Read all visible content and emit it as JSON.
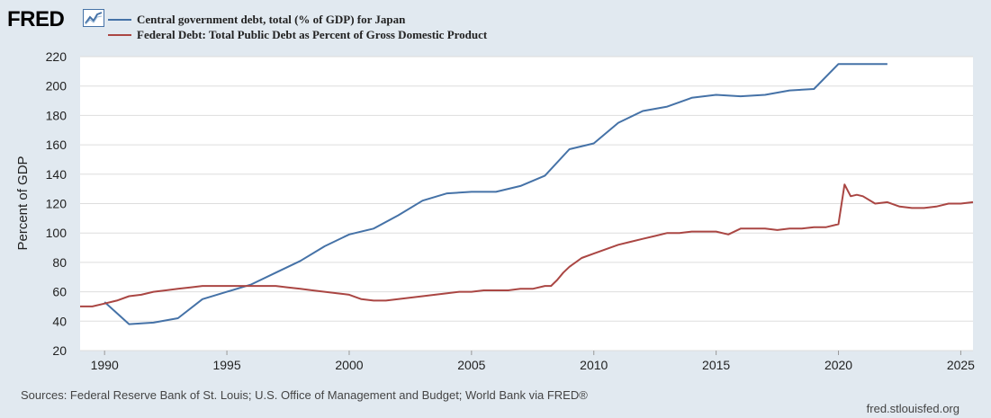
{
  "branding": {
    "logo_text": "FRED",
    "logo_icon": "chart-line-icon",
    "source_site": "fred.stlouisfed.org"
  },
  "sources_text": "Sources: Federal Reserve Bank of St. Louis; U.S. Office of Management and Budget; World Bank via FRED®",
  "colors": {
    "background": "#e1e9f0",
    "plot_bg": "#ffffff",
    "grid": "#dddddd",
    "series_japan": "#4572a7",
    "series_us": "#aa4643"
  },
  "chart_data": {
    "type": "line",
    "title": "",
    "xlabel": "",
    "ylabel": "Percent of GDP",
    "xlim": [
      1989,
      2025.5
    ],
    "ylim": [
      20,
      220
    ],
    "y_ticks": [
      20,
      40,
      60,
      80,
      100,
      120,
      140,
      160,
      180,
      200,
      220
    ],
    "x_ticks": [
      1990,
      1995,
      2000,
      2005,
      2010,
      2015,
      2020,
      2025
    ],
    "legend_position": "top-left",
    "series": [
      {
        "name": "Central government debt, total (% of GDP) for Japan",
        "color": "#4572a7",
        "x": [
          1990,
          1991,
          1992,
          1993,
          1994,
          1995,
          1996,
          1997,
          1998,
          1999,
          2000,
          2001,
          2002,
          2003,
          2004,
          2005,
          2006,
          2007,
          2008,
          2009,
          2010,
          2011,
          2012,
          2013,
          2014,
          2015,
          2016,
          2017,
          2018,
          2019,
          2020,
          2021,
          2022
        ],
        "y": [
          53,
          38,
          39,
          42,
          55,
          60,
          65,
          73,
          81,
          91,
          99,
          103,
          112,
          122,
          127,
          128,
          128,
          132,
          139,
          157,
          161,
          175,
          183,
          186,
          192,
          194,
          193,
          194,
          197,
          198,
          215,
          215,
          215
        ]
      },
      {
        "name": "Federal Debt: Total Public Debt as Percent of Gross Domestic Product",
        "color": "#aa4643",
        "x": [
          1989,
          1989.5,
          1990,
          1990.5,
          1991,
          1991.5,
          1992,
          1992.5,
          1993,
          1993.5,
          1994,
          1994.5,
          1995,
          1995.5,
          1996,
          1996.5,
          1997,
          1997.5,
          1998,
          1998.5,
          1999,
          1999.5,
          2000,
          2000.5,
          2001,
          2001.5,
          2002,
          2002.5,
          2003,
          2003.5,
          2004,
          2004.5,
          2005,
          2005.5,
          2006,
          2006.5,
          2007,
          2007.5,
          2008,
          2008.25,
          2008.5,
          2008.75,
          2009,
          2009.25,
          2009.5,
          2010,
          2010.5,
          2011,
          2011.5,
          2012,
          2012.5,
          2013,
          2013.5,
          2014,
          2014.5,
          2015,
          2015.5,
          2016,
          2016.5,
          2017,
          2017.5,
          2018,
          2018.5,
          2019,
          2019.5,
          2020,
          2020.25,
          2020.5,
          2020.75,
          2021,
          2021.5,
          2022,
          2022.5,
          2023,
          2023.5,
          2024,
          2024.5,
          2025,
          2025.5
        ],
        "y": [
          50,
          50,
          52,
          54,
          57,
          58,
          60,
          61,
          62,
          63,
          64,
          64,
          64,
          64,
          64,
          64,
          64,
          63,
          62,
          61,
          60,
          59,
          58,
          55,
          54,
          54,
          55,
          56,
          57,
          58,
          59,
          60,
          60,
          61,
          61,
          61,
          62,
          62,
          64,
          64,
          68,
          73,
          77,
          80,
          83,
          86,
          89,
          92,
          94,
          96,
          98,
          100,
          100,
          101,
          101,
          101,
          99,
          103,
          103,
          103,
          102,
          103,
          103,
          104,
          104,
          106,
          133,
          125,
          126,
          125,
          120,
          121,
          118,
          117,
          117,
          118,
          120,
          120,
          121
        ]
      }
    ]
  }
}
